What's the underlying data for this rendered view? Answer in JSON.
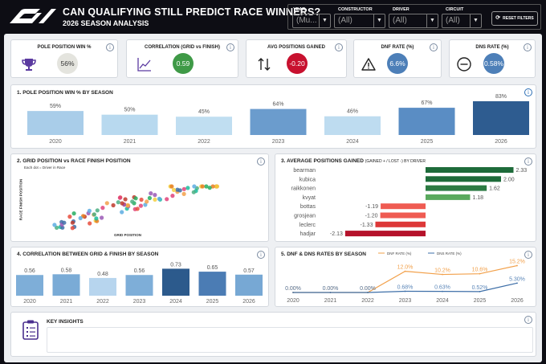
{
  "header": {
    "title": "CAN QUALIFYING STILL PREDICT RACE WINNERS?",
    "subtitle": "2026 SEASON ANALYSIS",
    "filters": [
      {
        "label": "YEAR",
        "value": "(Mu..."
      },
      {
        "label": "CONSTRUCTOR",
        "value": "(All)"
      },
      {
        "label": "DRIVER",
        "value": "(All)"
      },
      {
        "label": "CIRCUIT",
        "value": "(All)"
      }
    ],
    "reset_label": "RESET FILTERS"
  },
  "kpis": [
    {
      "title": "POLE POSITION WIN %",
      "value": "56%",
      "icon": "trophy-icon",
      "color": "#e4e4de",
      "text_color": "#333333"
    },
    {
      "title": "CORRELATION (GRID vs FINISH)",
      "value": "0.59",
      "icon": "line-chart-icon",
      "color": "#3f9a47",
      "text_color": "#ffffff"
    },
    {
      "title": "AVG POSITIONS GAINED",
      "value": "-0.20",
      "icon": "swap-arrows-icon",
      "color": "#c8112f",
      "text_color": "#ffffff"
    },
    {
      "title": "DNF RATE (%)",
      "value": "6.6%",
      "icon": "warning-icon",
      "color": "#4d7fb8",
      "text_color": "#ffffff"
    },
    {
      "title": "DNS RATE (%)",
      "value": "0.58%",
      "icon": "minus-circle-icon",
      "color": "#4d7fb8",
      "text_color": "#ffffff"
    }
  ],
  "sections": {
    "pole": "1. POLE POSITION WIN % BY SEASON",
    "scatter": "2. GRID POSITION vs RACE FINISH POSITION",
    "scatter_note": "Each dot = Driver in Race",
    "scatter_ylabel": "RACE FINISH POSITION",
    "scatter_xlabel": "GRID POSITION",
    "gained": "3. AVERAGE POSITIONS GAINED",
    "gained_note": "(GAINED + / LOST -) BY DRIVER",
    "corr": "4. CORRELATION BETWEEN GRID & FINISH BY SEASON",
    "dnf": "5. DNF & DNS RATES BY SEASON",
    "insights": "KEY INSIGHTS"
  },
  "chart_data": [
    {
      "type": "bar",
      "title": "1. POLE POSITION WIN % BY SEASON",
      "categories": [
        "2020",
        "2021",
        "2022",
        "2023",
        "2024",
        "2025",
        "2026"
      ],
      "values": [
        59,
        50,
        45,
        64,
        46,
        67,
        83
      ],
      "labels": [
        "59%",
        "50%",
        "45%",
        "64%",
        "46%",
        "67%",
        "83%"
      ],
      "colors": [
        "#a9cde9",
        "#b8d9ef",
        "#c0def1",
        "#6b9ccd",
        "#bedcf0",
        "#5a8dc4",
        "#2e5c90"
      ]
    },
    {
      "type": "scatter",
      "title": "2. GRID POSITION vs RACE FINISH POSITION",
      "xlabel": "GRID POSITION",
      "ylabel": "RACE FINISH POSITION"
    },
    {
      "type": "bar",
      "orientation": "horizontal",
      "title": "3. AVERAGE POSITIONS GAINED",
      "categories": [
        "bearman",
        "kubica",
        "raikkonen",
        "kvyat",
        "bottas",
        "grosjean",
        "leclerc",
        "hadjar"
      ],
      "values": [
        2.33,
        2.0,
        1.62,
        1.18,
        -1.19,
        -1.2,
        -1.33,
        -2.13
      ],
      "labels": [
        "2.33",
        "2.00",
        "1.62",
        "1.18",
        "-1.19",
        "-1.20",
        "-1.33",
        "-2.13"
      ],
      "colors": [
        "#1e6b3a",
        "#1e6b3a",
        "#2b7a42",
        "#5aa95e",
        "#ef5b52",
        "#ef5b52",
        "#dd3838",
        "#b5122b"
      ]
    },
    {
      "type": "bar",
      "title": "4. CORRELATION BETWEEN GRID & FINISH BY SEASON",
      "categories": [
        "2020",
        "2021",
        "2022",
        "2023",
        "2024",
        "2025",
        "2026"
      ],
      "values": [
        0.56,
        0.58,
        0.48,
        0.56,
        0.73,
        0.65,
        0.57
      ],
      "labels": [
        "0.56",
        "0.58",
        "0.48",
        "0.56",
        "0.73",
        "0.65",
        "0.57"
      ],
      "colors": [
        "#7eaed8",
        "#7aabd6",
        "#b7d5ee",
        "#7eaed8",
        "#2c5a8c",
        "#4b7cb4",
        "#77a8d4"
      ]
    },
    {
      "type": "line",
      "title": "5. DNF & DNS RATES BY SEASON",
      "categories": [
        "2020",
        "2021",
        "2022",
        "2023",
        "2024",
        "2025",
        "2026"
      ],
      "series": [
        {
          "name": "DNF RATE (%)",
          "values": [
            0.0,
            0.0,
            0.0,
            12.0,
            10.2,
            10.6,
            15.2
          ],
          "labels": [
            "0.00%",
            "0.00%",
            "0.00%",
            "12.0%",
            "10.2%",
            "10.6%",
            "15.2%"
          ],
          "color": "#f2a04a"
        },
        {
          "name": "DNS RATE (%)",
          "values": [
            0.0,
            0.0,
            0.0,
            0.68,
            0.63,
            0.52,
            5.3
          ],
          "labels": [
            "0.00%",
            "0.00%",
            "0.00%",
            "0.68%",
            "0.63%",
            "0.52%",
            "5.30%"
          ],
          "color": "#3e6fa8"
        }
      ]
    }
  ]
}
